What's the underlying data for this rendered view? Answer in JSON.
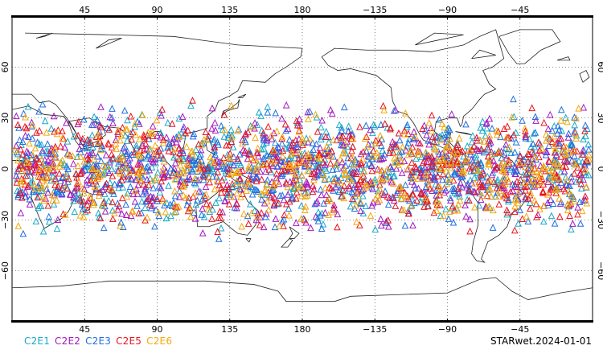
{
  "map": {
    "projection": "cylindrical equidistant",
    "lon_range": [
      0,
      360
    ],
    "lat_range": [
      -90,
      90
    ],
    "lon_tick_labels": [
      "45",
      "90",
      "135",
      "180",
      "−135",
      "−90",
      "−45"
    ],
    "lat_tick_labels": [
      "60",
      "30",
      "0",
      "−30",
      "−60"
    ],
    "grid": "dotted"
  },
  "legend": {
    "items": [
      {
        "label": "C2E1",
        "color": "#19a9c9"
      },
      {
        "label": "C2E2",
        "color": "#a417c0"
      },
      {
        "label": "C2E3",
        "color": "#1f6fe0"
      },
      {
        "label": "C2E5",
        "color": "#e8141e"
      },
      {
        "label": "C2E6",
        "color": "#f4a80c"
      }
    ]
  },
  "stamp": "STARwet.2024-01-01",
  "chart_data": {
    "type": "scatter",
    "title": "",
    "xlabel": "",
    "ylabel": "",
    "xlim": [
      0,
      360
    ],
    "ylim": [
      -90,
      90
    ],
    "series": [
      {
        "name": "C2E1",
        "color": "#19a9c9",
        "marker": "triangle-open",
        "lat_band": [
          -45,
          45
        ]
      },
      {
        "name": "C2E2",
        "color": "#a417c0",
        "marker": "triangle-open",
        "lat_band": [
          -45,
          45
        ]
      },
      {
        "name": "C2E3",
        "color": "#1f6fe0",
        "marker": "triangle-open",
        "lat_band": [
          -45,
          45
        ]
      },
      {
        "name": "C2E5",
        "color": "#e8141e",
        "marker": "triangle-open",
        "lat_band": [
          -45,
          45
        ]
      },
      {
        "name": "C2E6",
        "color": "#f4a80c",
        "marker": "triangle-open",
        "lat_band": [
          -45,
          45
        ]
      }
    ]
  }
}
